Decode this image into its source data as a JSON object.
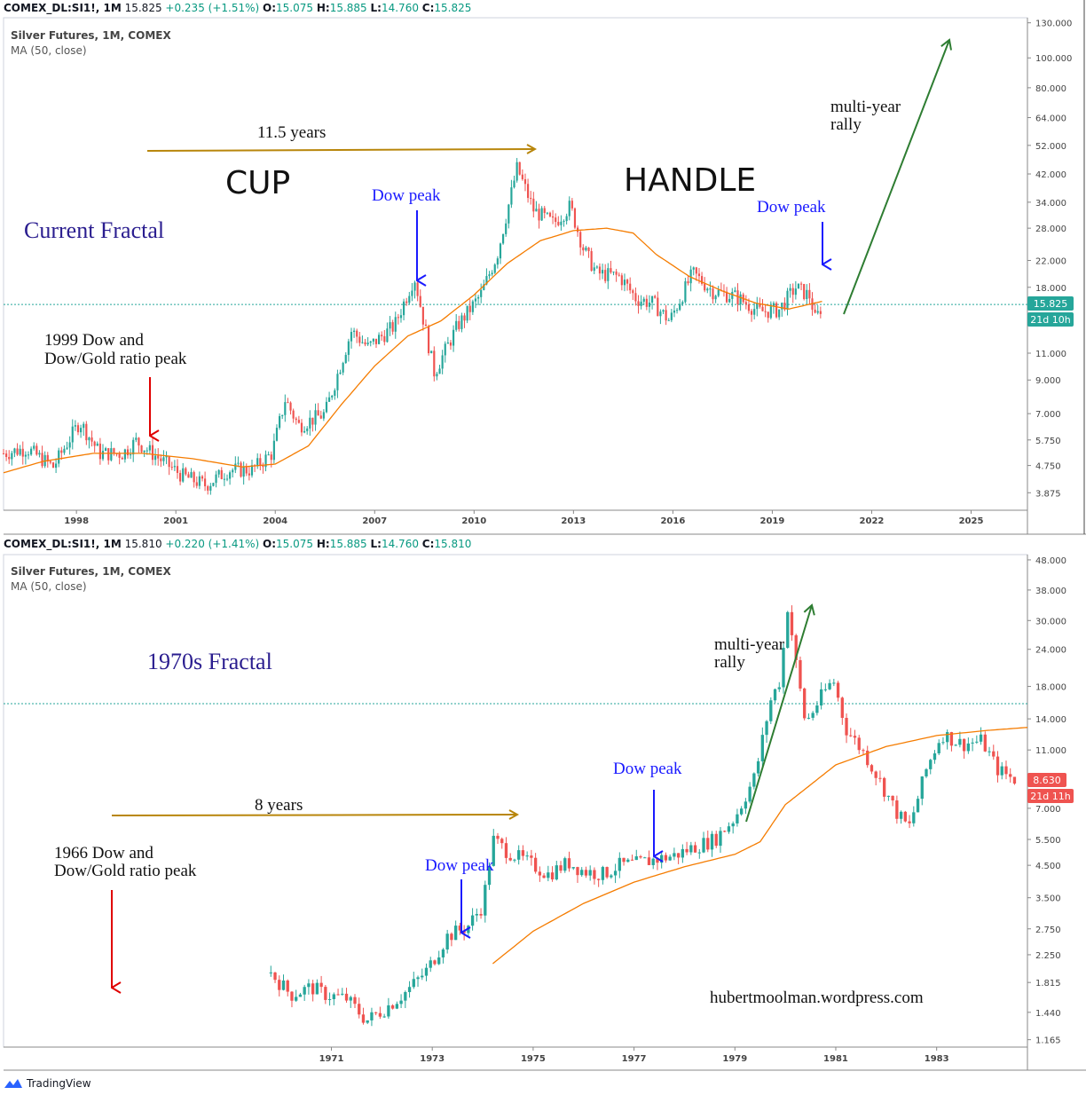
{
  "charts": [
    {
      "header": {
        "symbol": "COMEX_DL:SI1!, 1M",
        "last": "15.825",
        "change": "+0.235 (+1.51%)",
        "o": "15.075",
        "h": "15.885",
        "l": "14.760",
        "c": "15.825"
      },
      "subtitle": {
        "title": "Silver Futures, 1M, COMEX",
        "indicator": "MA (50, close)"
      },
      "price_badge": "15.825",
      "time_badge": "21d 10h",
      "colors": {
        "badge": "#26a69a",
        "badge_text": "#ffffff"
      }
    },
    {
      "header": {
        "symbol": "COMEX_DL:SI1!, 1M",
        "last": "15.810",
        "change": "+0.220 (+1.41%)",
        "o": "15.075",
        "h": "15.885",
        "l": "14.760",
        "c": "15.810"
      },
      "subtitle": {
        "title": "Silver Futures, 1M, COMEX",
        "indicator": "MA (50, close)"
      },
      "price_badge": "8.630",
      "time_badge": "21d 11h",
      "colors": {
        "badge": "#ef5350",
        "badge_text": "#ffffff"
      }
    }
  ],
  "chart_data": [
    {
      "type": "candlestick",
      "title": "Silver Futures, 1M, COMEX",
      "scale": "log",
      "y_ticks": [
        "130.000",
        "100.000",
        "80.000",
        "64.000",
        "52.000",
        "42.000",
        "34.000",
        "28.000",
        "22.000",
        "18.000",
        "11.000",
        "9.000",
        "7.000",
        "5.750",
        "4.750",
        "3.875"
      ],
      "x_ticks": [
        "1998",
        "2001",
        "2004",
        "2007",
        "2010",
        "2013",
        "2016",
        "2019",
        "2022",
        "2025"
      ],
      "x_range": [
        1995.8,
        2026.7
      ],
      "y_range": [
        3.4,
        135
      ],
      "grid": false,
      "anchors": [
        [
          1995.8,
          5.2
        ],
        [
          1996.5,
          5.4
        ],
        [
          1997.3,
          4.7
        ],
        [
          1998.1,
          6.6
        ],
        [
          1998.7,
          5.2
        ],
        [
          1999.4,
          5.2
        ],
        [
          1999.8,
          5.7
        ],
        [
          2000.5,
          5.0
        ],
        [
          2001.2,
          4.4
        ],
        [
          2001.9,
          4.1
        ],
        [
          2002.6,
          4.6
        ],
        [
          2003.3,
          4.6
        ],
        [
          2003.9,
          5.2
        ],
        [
          2004.3,
          7.8
        ],
        [
          2004.7,
          6.4
        ],
        [
          2005.5,
          7.0
        ],
        [
          2006.3,
          13.0
        ],
        [
          2006.8,
          11.5
        ],
        [
          2007.6,
          13.5
        ],
        [
          2008.2,
          19.5
        ],
        [
          2008.8,
          9.5
        ],
        [
          2009.5,
          13.5
        ],
        [
          2010.2,
          17.0
        ],
        [
          2010.7,
          23.0
        ],
        [
          2011.3,
          44.0
        ],
        [
          2011.8,
          32.0
        ],
        [
          2012.4,
          29.0
        ],
        [
          2012.9,
          33.0
        ],
        [
          2013.3,
          24.0
        ],
        [
          2013.7,
          20.0
        ],
        [
          2014.4,
          19.5
        ],
        [
          2014.9,
          16.5
        ],
        [
          2015.4,
          16.0
        ],
        [
          2015.9,
          14.0
        ],
        [
          2016.6,
          20.0
        ],
        [
          2017.2,
          17.5
        ],
        [
          2017.9,
          16.8
        ],
        [
          2018.6,
          15.0
        ],
        [
          2019.2,
          15.2
        ],
        [
          2019.7,
          18.0
        ],
        [
          2020.15,
          16.8
        ],
        [
          2020.3,
          14.0
        ],
        [
          2020.5,
          15.8
        ]
      ],
      "ma_anchors": [
        [
          1995.8,
          4.5
        ],
        [
          1997.0,
          4.9
        ],
        [
          1998.5,
          5.2
        ],
        [
          2000.0,
          5.2
        ],
        [
          2001.5,
          5.0
        ],
        [
          2003.0,
          4.7
        ],
        [
          2004.0,
          4.8
        ],
        [
          2005.0,
          5.5
        ],
        [
          2006.0,
          7.5
        ],
        [
          2007.0,
          10.0
        ],
        [
          2008.0,
          12.5
        ],
        [
          2009.0,
          14.0
        ],
        [
          2010.0,
          17.0
        ],
        [
          2011.0,
          21.5
        ],
        [
          2012.0,
          25.5
        ],
        [
          2013.0,
          27.5
        ],
        [
          2014.0,
          28.0
        ],
        [
          2014.8,
          27.0
        ],
        [
          2015.5,
          23.0
        ],
        [
          2016.5,
          19.5
        ],
        [
          2017.5,
          17.5
        ],
        [
          2018.5,
          16.0
        ],
        [
          2019.5,
          15.3
        ],
        [
          2020.5,
          16.2
        ]
      ],
      "series": [
        {
          "name": "MA (50, close)",
          "color": "#f57c00"
        },
        {
          "name": "price_up",
          "color": "#26a69a"
        },
        {
          "name": "price_down",
          "color": "#ef5350"
        }
      ],
      "reference_line": 15.825,
      "annotations": {
        "period": "11.5 years",
        "cup": "CUP",
        "handle": "HANDLE",
        "fractal": "Current Fractal",
        "dow_peak_1": "Dow peak",
        "dow_peak_2": "Dow peak",
        "peak_note_1": "1999 Dow and",
        "peak_note_2": "Dow/Gold ratio peak",
        "rally_1": "multi-year",
        "rally_2": "rally"
      }
    },
    {
      "type": "candlestick",
      "title": "Silver Futures, 1M, COMEX",
      "scale": "log",
      "y_ticks": [
        "48.000",
        "38.000",
        "30.000",
        "24.000",
        "18.000",
        "14.000",
        "11.000",
        "8.630",
        "7.000",
        "5.500",
        "4.500",
        "3.500",
        "2.750",
        "2.250",
        "1.815",
        "1.440",
        "1.165"
      ],
      "x_ticks": [
        "1971",
        "1973",
        "1975",
        "1977",
        "1979",
        "1981",
        "1983"
      ],
      "x_range": [
        1964.5,
        1984.8
      ],
      "y_range": [
        1.1,
        50
      ],
      "grid": false,
      "anchors": [
        [
          1969.8,
          1.95
        ],
        [
          1970.2,
          1.65
        ],
        [
          1970.6,
          1.75
        ],
        [
          1970.9,
          1.65
        ],
        [
          1971.3,
          1.6
        ],
        [
          1971.7,
          1.35
        ],
        [
          1972.1,
          1.5
        ],
        [
          1972.5,
          1.7
        ],
        [
          1972.9,
          2.0
        ],
        [
          1973.3,
          2.6
        ],
        [
          1973.7,
          2.8
        ],
        [
          1974.0,
          3.3
        ],
        [
          1974.2,
          5.5
        ],
        [
          1974.5,
          5.0
        ],
        [
          1974.9,
          4.6
        ],
        [
          1975.3,
          4.2
        ],
        [
          1975.7,
          4.6
        ],
        [
          1976.0,
          4.3
        ],
        [
          1976.4,
          4.2
        ],
        [
          1976.7,
          4.5
        ],
        [
          1977.0,
          4.55
        ],
        [
          1977.4,
          4.7
        ],
        [
          1977.8,
          4.85
        ],
        [
          1978.2,
          5.2
        ],
        [
          1978.6,
          5.5
        ],
        [
          1979.0,
          6.5
        ],
        [
          1979.4,
          9.0
        ],
        [
          1979.7,
          16.0
        ],
        [
          1979.9,
          19.0
        ],
        [
          1980.05,
          34.0
        ],
        [
          1980.2,
          22.0
        ],
        [
          1980.4,
          13.5
        ],
        [
          1980.7,
          16.5
        ],
        [
          1980.95,
          19.0
        ],
        [
          1981.2,
          13.0
        ],
        [
          1981.6,
          10.5
        ],
        [
          1981.9,
          8.5
        ],
        [
          1982.2,
          6.8
        ],
        [
          1982.45,
          6.0
        ],
        [
          1982.8,
          9.5
        ],
        [
          1983.1,
          12.5
        ],
        [
          1983.5,
          11.5
        ],
        [
          1983.9,
          11.8
        ],
        [
          1984.2,
          9.5
        ],
        [
          1984.6,
          8.6
        ]
      ],
      "ma_anchors": [
        [
          1974.2,
          2.1
        ],
        [
          1975.0,
          2.7
        ],
        [
          1976.0,
          3.35
        ],
        [
          1977.0,
          3.95
        ],
        [
          1978.0,
          4.45
        ],
        [
          1979.0,
          4.9
        ],
        [
          1979.5,
          5.4
        ],
        [
          1980.0,
          7.2
        ],
        [
          1980.5,
          8.4
        ],
        [
          1981.0,
          9.8
        ],
        [
          1982.0,
          11.3
        ],
        [
          1983.0,
          12.3
        ],
        [
          1984.0,
          12.8
        ],
        [
          1984.8,
          13.1
        ]
      ],
      "series": [
        {
          "name": "MA (50, close)",
          "color": "#f57c00"
        },
        {
          "name": "price_up",
          "color": "#26a69a"
        },
        {
          "name": "price_down",
          "color": "#ef5350"
        }
      ],
      "reference_line": 15.81,
      "annotations": {
        "period": "8 years",
        "fractal": "1970s Fractal",
        "dow_peak_1": "Dow peak",
        "dow_peak_2": "Dow peak",
        "peak_note_1": "1966 Dow and",
        "peak_note_2": "Dow/Gold ratio peak",
        "rally_1": "multi-year",
        "rally_2": "rally",
        "credit": "hubertmoolman.wordpress.com"
      }
    }
  ],
  "footer": {
    "brand": "TradingView"
  }
}
